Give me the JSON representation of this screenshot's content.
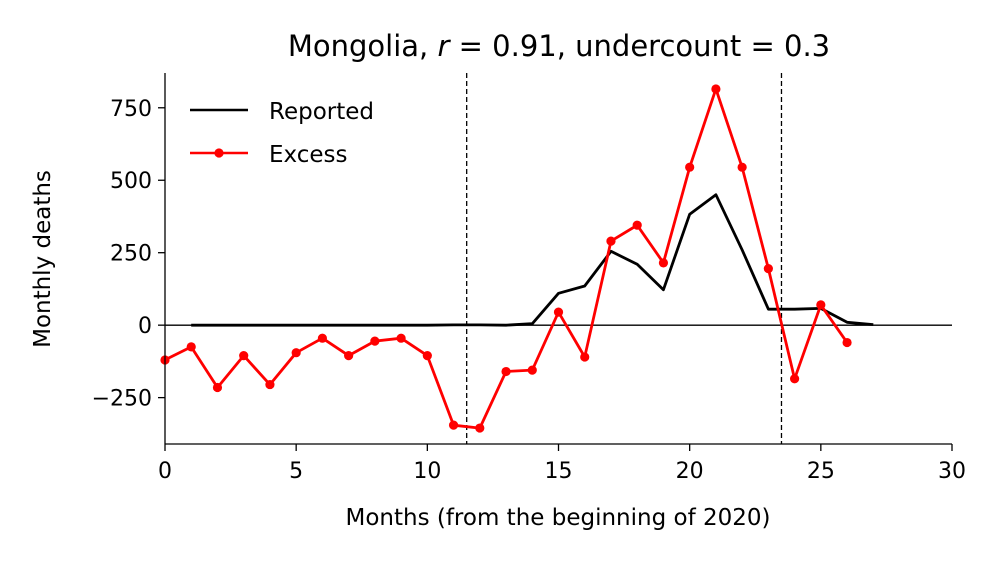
{
  "chart_data": {
    "type": "line",
    "title_parts": [
      "Mongolia, ",
      "r",
      " = 0.91, undercount = 0.3"
    ],
    "xlabel": "Months (from the beginning of 2020)",
    "ylabel": "Monthly deaths",
    "xlim": [
      0,
      30
    ],
    "ylim": [
      -410,
      870
    ],
    "xticks": [
      0,
      5,
      10,
      15,
      20,
      25,
      30
    ],
    "yticks": [
      -250,
      0,
      250,
      500,
      750
    ],
    "ytick_labels": [
      "−250",
      "0",
      "250",
      "500",
      "750"
    ],
    "vlines": [
      11.5,
      23.5
    ],
    "hline": 0,
    "grid": false,
    "legend_position": "upper-left",
    "series": [
      {
        "name": "Reported",
        "color": "#000000",
        "marker": false,
        "x": [
          1,
          2,
          3,
          4,
          5,
          6,
          7,
          8,
          9,
          10,
          11,
          12,
          13,
          14,
          15,
          16,
          17,
          18,
          19,
          20,
          21,
          22,
          23,
          24,
          25,
          26,
          27
        ],
        "y": [
          0,
          0,
          0,
          0,
          0,
          0,
          0,
          0,
          0,
          0,
          1,
          1,
          0,
          5,
          110,
          135,
          255,
          210,
          122,
          383,
          450,
          260,
          55,
          55,
          58,
          10,
          2
        ]
      },
      {
        "name": "Excess",
        "color": "#ff0000",
        "marker": true,
        "x": [
          0,
          1,
          2,
          3,
          4,
          5,
          6,
          7,
          8,
          9,
          10,
          11,
          12,
          13,
          14,
          15,
          16,
          17,
          18,
          19,
          20,
          21,
          22,
          23,
          24,
          25,
          26
        ],
        "y": [
          -120,
          -75,
          -215,
          -105,
          -205,
          -95,
          -45,
          -105,
          -55,
          -45,
          -105,
          -345,
          -355,
          -160,
          -155,
          45,
          -110,
          290,
          345,
          215,
          545,
          815,
          545,
          195,
          -185,
          70,
          -60
        ]
      }
    ]
  }
}
